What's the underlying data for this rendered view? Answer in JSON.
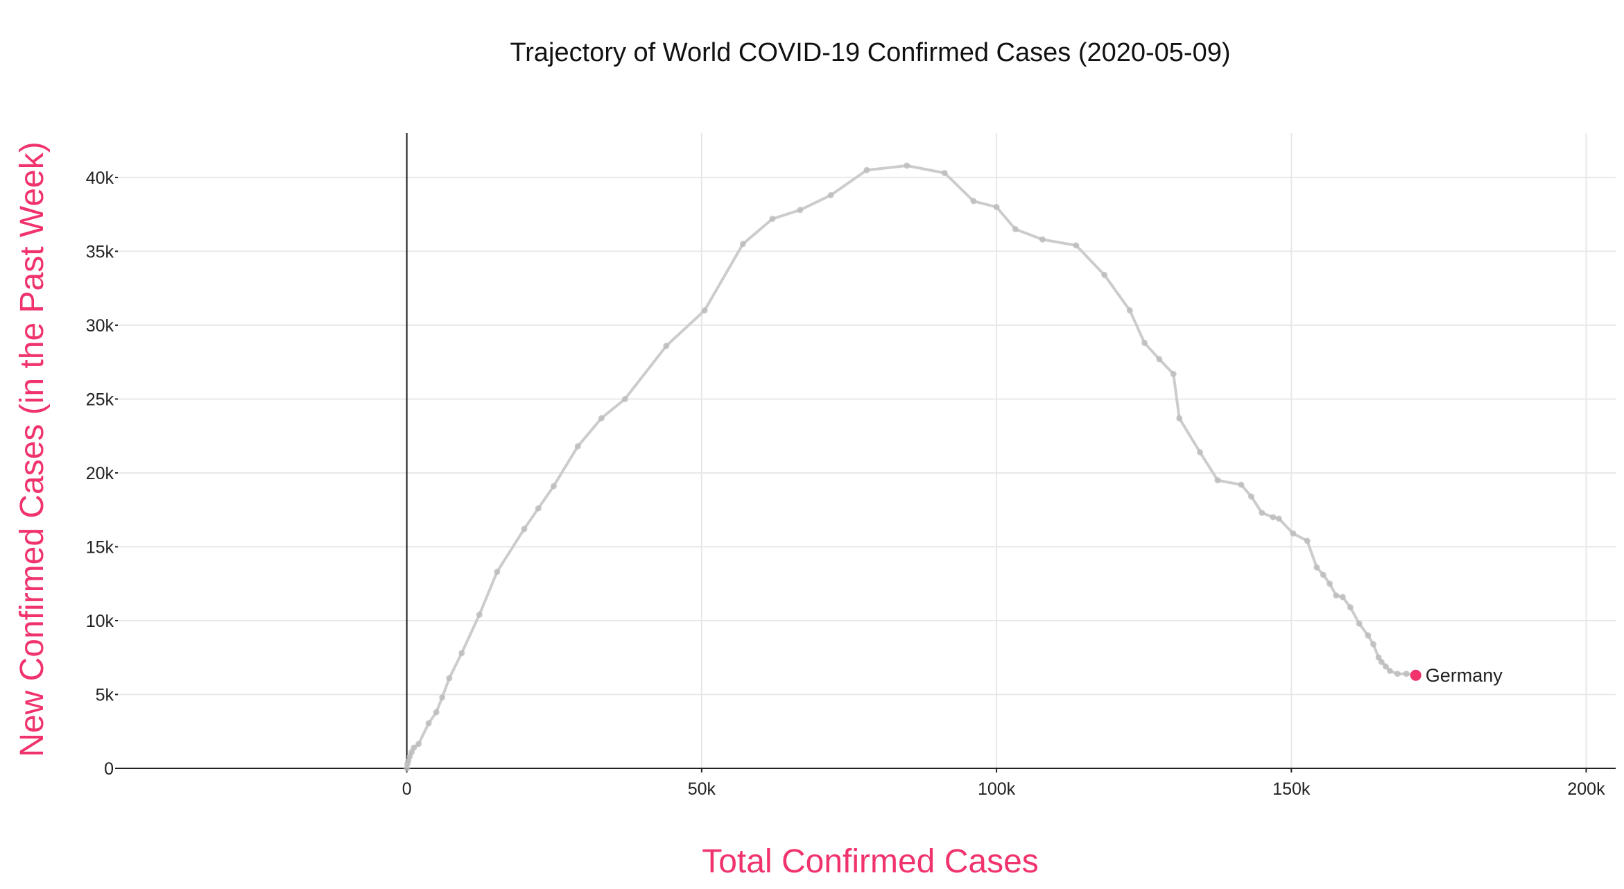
{
  "chart_data": {
    "type": "line",
    "title": "Trajectory of World COVID-19 Confirmed Cases (2020-05-09)",
    "xlabel": "Total Confirmed Cases",
    "ylabel": "New Confirmed Cases (in the Past Week)",
    "xlim": [
      -49000,
      205000
    ],
    "ylim": [
      0,
      43000
    ],
    "x_ticks": [
      0,
      50000,
      100000,
      150000,
      200000
    ],
    "x_tick_labels": [
      "0",
      "50k",
      "100k",
      "150k",
      "200k"
    ],
    "y_ticks": [
      0,
      5000,
      10000,
      15000,
      20000,
      25000,
      30000,
      35000,
      40000
    ],
    "y_tick_labels": [
      "0",
      "5k",
      "10k",
      "15k",
      "20k",
      "25k",
      "30k",
      "35k",
      "40k"
    ],
    "grid": true,
    "series": [
      {
        "name": "Germany",
        "x": [
          0,
          100,
          250,
          500,
          800,
          1200,
          2000,
          3700,
          5000,
          6000,
          7200,
          9300,
          12300,
          15300,
          19900,
          22300,
          24900,
          29000,
          33000,
          37000,
          44000,
          50500,
          57000,
          62000,
          66700,
          71900,
          78000,
          84800,
          91200,
          96100,
          100000,
          103200,
          107800,
          113500,
          118300,
          122600,
          125100,
          127600,
          130000,
          131000,
          134500,
          137500,
          141500,
          143200,
          145000,
          146900,
          147900,
          150300,
          152700,
          154300,
          155400,
          156500,
          157600,
          158700,
          160000,
          161500,
          163000,
          163900,
          164800,
          165300,
          166000,
          166700,
          168000,
          169500,
          171100
        ],
        "y": [
          0,
          300,
          500,
          800,
          1100,
          1400,
          1650,
          3050,
          3800,
          4800,
          6100,
          7800,
          10400,
          13300,
          16200,
          17600,
          19100,
          21800,
          23700,
          25000,
          28600,
          31000,
          35500,
          37200,
          37800,
          38800,
          40500,
          40800,
          40300,
          38400,
          38000,
          36500,
          35800,
          35400,
          33400,
          31000,
          28800,
          27700,
          26700,
          23700,
          21400,
          19500,
          19200,
          18400,
          17300,
          17000,
          16900,
          15900,
          15400,
          13600,
          13100,
          12500,
          11700,
          11600,
          10900,
          9800,
          9000,
          8400,
          7500,
          7200,
          6900,
          6600,
          6400,
          6400,
          6300
        ],
        "color": "#cccccc",
        "highlight_color": "#f0336c"
      }
    ],
    "annotation": "Germany",
    "axis_label_color": "#f0336c"
  }
}
